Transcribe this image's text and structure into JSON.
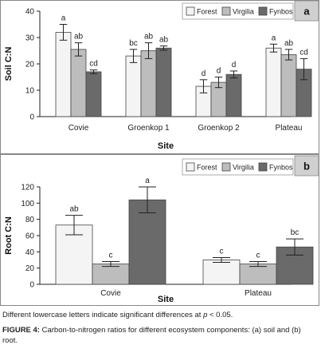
{
  "colors": {
    "Forest": "#f4f4f4",
    "Virgilia": "#bdbdbd",
    "Fynbos": "#6a6a6a",
    "label_box": "#d0d0d0"
  },
  "chart_data": [
    {
      "type": "bar",
      "panel_label": "a",
      "categories": [
        "Covie",
        "Groenkop 1",
        "Groenkop 2",
        "Plateau"
      ],
      "series": [
        {
          "name": "Forest",
          "values": [
            32,
            23,
            11.5,
            26
          ],
          "errors": [
            3,
            2.5,
            2.5,
            1.5
          ],
          "letters": [
            "a",
            "bc",
            "d",
            "a"
          ]
        },
        {
          "name": "Virgilia",
          "values": [
            25.5,
            25,
            13,
            23.5
          ],
          "errors": [
            2.5,
            3,
            2,
            2
          ],
          "letters": [
            "ab",
            "ab",
            "d",
            "ab"
          ]
        },
        {
          "name": "Fynbos",
          "values": [
            17,
            26,
            16,
            18
          ],
          "errors": [
            0.7,
            0.8,
            1.3,
            4
          ],
          "letters": [
            "cd",
            "ab",
            "d",
            "cd"
          ]
        }
      ],
      "xlabel": "Site",
      "ylabel": "Soil C:N",
      "ylim": [
        0,
        40
      ],
      "yticks": [
        0,
        10,
        20,
        30,
        40
      ],
      "legend": "top-right",
      "grid": false
    },
    {
      "type": "bar",
      "panel_label": "b",
      "categories": [
        "Covie",
        "Plateau"
      ],
      "series": [
        {
          "name": "Forest",
          "values": [
            73,
            30
          ],
          "errors": [
            12,
            3
          ],
          "letters": [
            "ab",
            "c"
          ]
        },
        {
          "name": "Virgilia",
          "values": [
            25,
            25
          ],
          "errors": [
            3,
            3
          ],
          "letters": [
            "c",
            "c"
          ]
        },
        {
          "name": "Fynbos",
          "values": [
            104,
            46
          ],
          "errors": [
            16,
            10
          ],
          "letters": [
            "a",
            "bc"
          ]
        }
      ],
      "xlabel": "Site",
      "ylabel": "Root C:N",
      "ylim": [
        0,
        120
      ],
      "yticks": [
        0,
        20,
        40,
        60,
        80,
        100,
        120
      ],
      "legend": "top-right",
      "grid": false
    }
  ],
  "note": {
    "prefix": "Different lowercase letters indicate significant differences at ",
    "p": "p",
    "suffix": " < 0.05."
  },
  "caption": {
    "label": "FIGURE 4:",
    "text": " Carbon-to-nitrogen ratios for different ecosystem components: (a) soil and (b) root."
  }
}
